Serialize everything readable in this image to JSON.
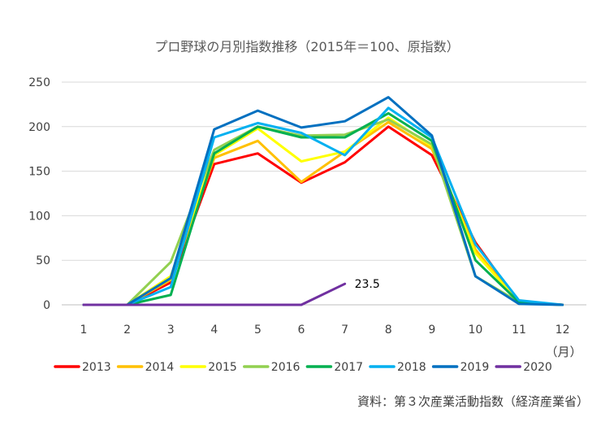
{
  "chart_data": {
    "type": "line",
    "title": "プロ野球の月別指数推移（2015年＝100、原指数）",
    "x_unit_label": "（月）",
    "source_note": "資料：第３次産業活動指数（経済産業省）",
    "x": [
      "1",
      "2",
      "3",
      "4",
      "5",
      "6",
      "7",
      "8",
      "9",
      "10",
      "11",
      "12"
    ],
    "ylim": [
      0,
      250
    ],
    "yticks": [
      "0",
      "50",
      "100",
      "150",
      "200",
      "250"
    ],
    "grid": true,
    "legend_position": "bottom",
    "series": [
      {
        "name": "2013",
        "color": "#ff0000",
        "values": [
          0,
          0,
          25,
          158,
          170,
          137,
          160,
          200,
          168,
          70,
          2,
          0
        ]
      },
      {
        "name": "2014",
        "color": "#ffc000",
        "values": [
          0,
          0,
          28,
          165,
          184,
          138,
          172,
          205,
          175,
          62,
          2,
          0
        ]
      },
      {
        "name": "2015",
        "color": "#ffff00",
        "values": [
          0,
          0,
          32,
          168,
          198,
          161,
          172,
          210,
          178,
          58,
          3,
          0
        ]
      },
      {
        "name": "2016",
        "color": "#92d050",
        "values": [
          0,
          0,
          48,
          174,
          200,
          190,
          191,
          208,
          180,
          32,
          3,
          0
        ]
      },
      {
        "name": "2017",
        "color": "#00b050",
        "values": [
          0,
          0,
          11,
          170,
          200,
          188,
          188,
          215,
          184,
          50,
          3,
          0
        ]
      },
      {
        "name": "2018",
        "color": "#00b0f0",
        "values": [
          0,
          0,
          20,
          188,
          204,
          193,
          168,
          221,
          188,
          68,
          5,
          0
        ]
      },
      {
        "name": "2019",
        "color": "#0070c0",
        "values": [
          0,
          0,
          30,
          197,
          218,
          199,
          206,
          233,
          190,
          32,
          1,
          0
        ]
      },
      {
        "name": "2020",
        "color": "#7030a0",
        "values": [
          0,
          0,
          0,
          0,
          0,
          0,
          23.5,
          null,
          null,
          null,
          null,
          null
        ]
      }
    ],
    "annotations": [
      {
        "series": "2020",
        "x": "7",
        "text": "23.5"
      }
    ]
  }
}
